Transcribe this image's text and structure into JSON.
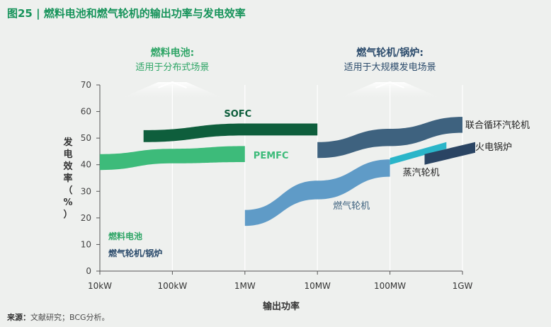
{
  "figure": {
    "title": "图25 | 燃料电池和燃气轮机的输出功率与发电效率",
    "source_label": "来源：",
    "source_text": "文献研究；BCG分析。"
  },
  "colors": {
    "title": "#16935a",
    "sofc": "#0e5e3c",
    "pemfc": "#3dbb7a",
    "gas_turbine": "#5f9bc7",
    "combined_cycle": "#3e627f",
    "steam_turbine": "#2ab5c9",
    "thermal_boiler": "#2a4463",
    "fuel_cell_label": "#2ea566",
    "gas_turbine_label": "#2a4a6b"
  },
  "chart_data": {
    "type": "area",
    "xscale": "log",
    "xticks": [
      "10kW",
      "100kW",
      "1MW",
      "10MW",
      "100MW",
      "1GW"
    ],
    "xlabel": "输出功率",
    "ylabel": "发电效率（%）",
    "yticks": [
      0,
      10,
      20,
      30,
      40,
      50,
      60,
      70
    ],
    "ylim": [
      0,
      70
    ],
    "grid": true,
    "group_labels": [
      {
        "key": "fuel_cell",
        "title": "燃料电池:",
        "subtitle": "适用于分布式场景",
        "x_center": "100kW"
      },
      {
        "key": "gas_turbine",
        "title": "燃气轮机/锅炉:",
        "subtitle": "适用于大规模发电场景",
        "x_center": "100MW"
      }
    ],
    "legend": [
      {
        "label": "燃料电池",
        "color": "#2ea566"
      },
      {
        "label": "燃气轮机/锅炉",
        "color": "#2a4a6b"
      }
    ],
    "series": [
      {
        "name": "SOFC",
        "color": "#0e5e3c",
        "points": [
          {
            "x": "40kW",
            "low": 48.5,
            "high": 53
          },
          {
            "x": "1MW",
            "low": 51,
            "high": 55.5
          },
          {
            "x": "10MW",
            "low": 51,
            "high": 55.5
          }
        ]
      },
      {
        "name": "PEMFC",
        "color": "#3dbb7a",
        "points": [
          {
            "x": "10kW",
            "low": 38,
            "high": 44
          },
          {
            "x": "100kW",
            "low": 40.5,
            "high": 46
          },
          {
            "x": "1MW",
            "low": 41,
            "high": 47
          }
        ]
      },
      {
        "name": "燃气轮机",
        "color": "#5f9bc7",
        "points": [
          {
            "x": "1MW",
            "low": 17,
            "high": 23
          },
          {
            "x": "10MW",
            "low": 27,
            "high": 34
          },
          {
            "x": "100MW",
            "low": 35.5,
            "high": 42
          }
        ]
      },
      {
        "name": "联合循环汽轮机",
        "color": "#3e627f",
        "points": [
          {
            "x": "10MW",
            "low": 42.5,
            "high": 48.5
          },
          {
            "x": "100MW",
            "low": 47,
            "high": 53.5
          },
          {
            "x": "1GW",
            "low": 52,
            "high": 58
          }
        ]
      },
      {
        "name": "蒸汽轮机",
        "color": "#2ab5c9",
        "points": [
          {
            "x": "100MW",
            "low": 40,
            "high": 42.5
          },
          {
            "x": "600MW",
            "low": 46,
            "high": 48.5
          }
        ]
      },
      {
        "name": "火电锅炉",
        "color": "#2a4463",
        "points": [
          {
            "x": "300MW",
            "low": 40,
            "high": 44
          },
          {
            "x": "1.5GW",
            "low": 44.5,
            "high": 48.5
          }
        ]
      }
    ]
  }
}
